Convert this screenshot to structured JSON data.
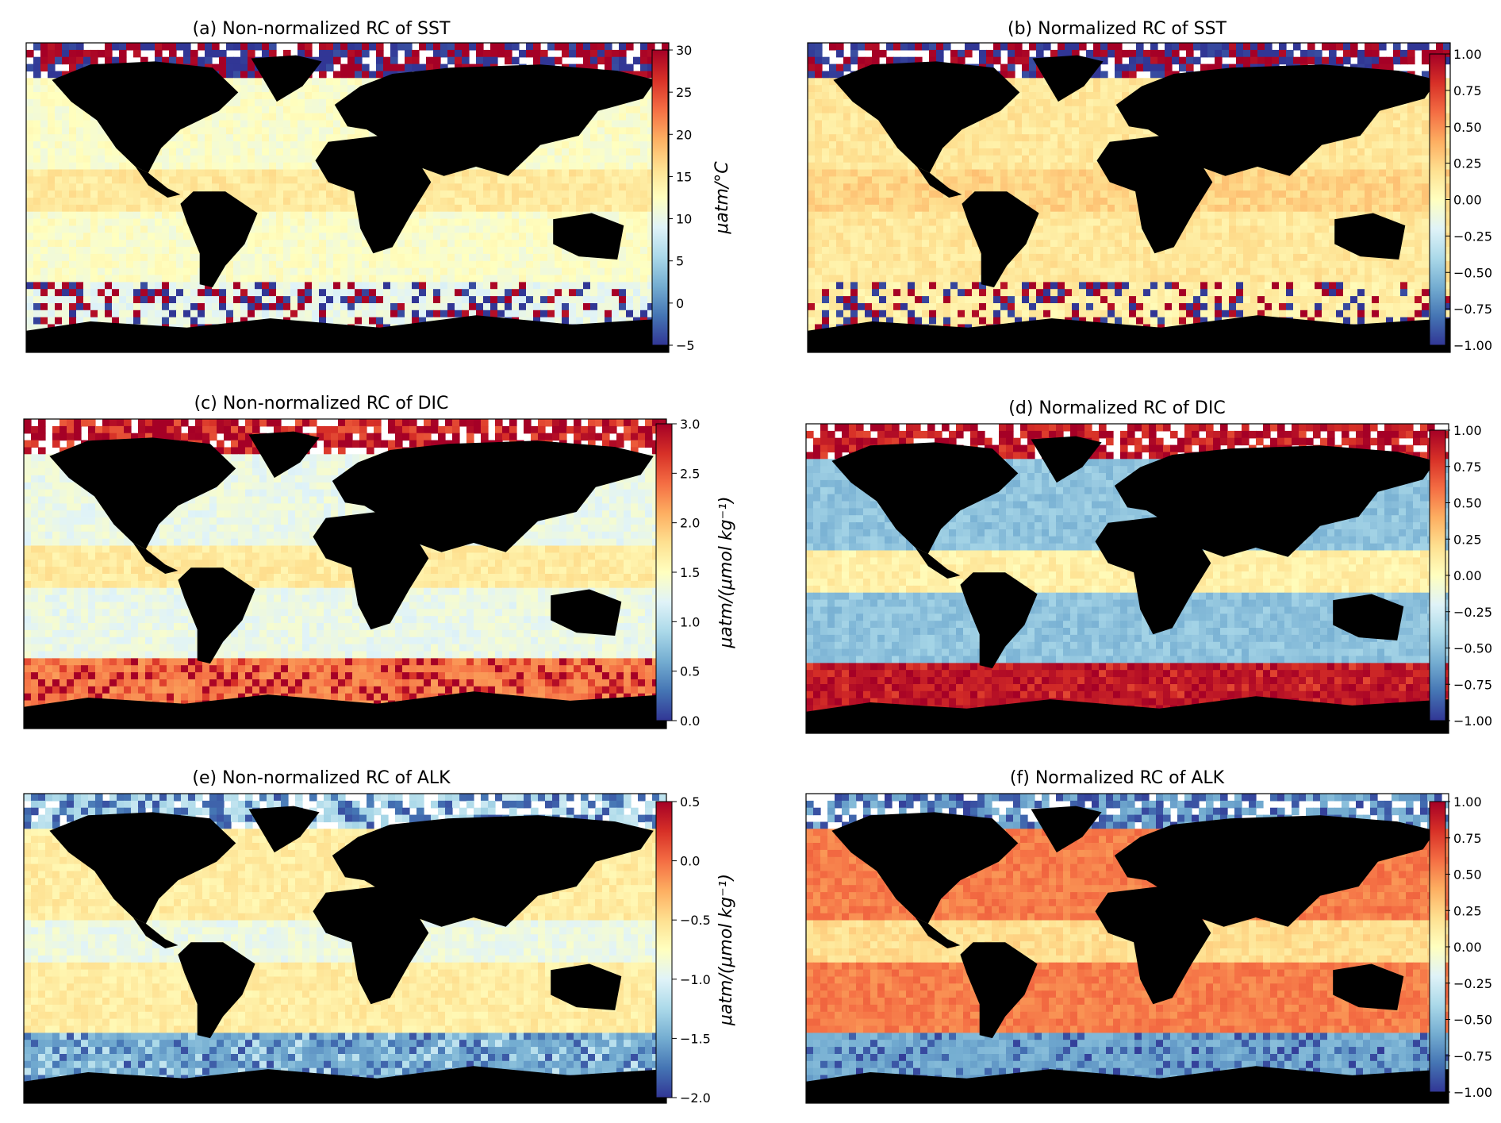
{
  "figure": {
    "colormap": [
      "#313695",
      "#4575b4",
      "#74add1",
      "#abd9e9",
      "#e0f3f8",
      "#ffffbf",
      "#fee090",
      "#fdae61",
      "#f46d43",
      "#d73027",
      "#a50026"
    ],
    "land_color": "#000000"
  },
  "chart_data": [
    {
      "type": "heatmap",
      "panel": "a",
      "title": "(a) Non-normalized RC of SST",
      "colorbar_label": "μatm/°C",
      "ticks": [
        "30",
        "25",
        "20",
        "15",
        "10",
        "5",
        "0",
        "−5"
      ],
      "range": [
        -5,
        30
      ],
      "typical_ocean_value": 12,
      "tropical_band_value": 15,
      "southern_ocean_value": 10,
      "polar_fringe_values": [
        -5,
        30
      ]
    },
    {
      "type": "heatmap",
      "panel": "b",
      "title": "(b) Normalized RC of SST",
      "colorbar_label": "",
      "ticks": [
        "1.00",
        "0.75",
        "0.50",
        "0.25",
        "0.00",
        "−0.25",
        "−0.50",
        "−0.75",
        "−1.00"
      ],
      "range": [
        -1,
        1
      ],
      "typical_ocean_value": 0.15,
      "tropical_band_value": 0.25,
      "southern_ocean_value": 0.1,
      "polar_fringe_values": [
        -1,
        1
      ]
    },
    {
      "type": "heatmap",
      "panel": "c",
      "title": "(c) Non-normalized RC of DIC",
      "colorbar_label": "μatm/(μmol kg⁻¹)",
      "ticks": [
        "3.0",
        "2.5",
        "2.0",
        "1.5",
        "1.0",
        "0.5",
        "0.0"
      ],
      "range": [
        0,
        3
      ],
      "typical_ocean_value": 1.3,
      "tropical_band_value": 1.7,
      "southern_ocean_value": 2.3,
      "polar_fringe_values": [
        2.6,
        3.0
      ]
    },
    {
      "type": "heatmap",
      "panel": "d",
      "title": "(d) Normalized RC of DIC",
      "colorbar_label": "",
      "ticks": [
        "1.00",
        "0.75",
        "0.50",
        "0.25",
        "0.00",
        "−0.25",
        "−0.50",
        "−0.75",
        "−1.00"
      ],
      "range": [
        -1,
        1
      ],
      "typical_ocean_value": -0.5,
      "tropical_band_value": 0.1,
      "southern_ocean_value": 0.9,
      "polar_fringe_values": [
        0.8,
        1.0
      ]
    },
    {
      "type": "heatmap",
      "panel": "e",
      "title": "(e) Non-normalized RC of ALK",
      "colorbar_label": "μatm/(μmol kg⁻¹)",
      "ticks": [
        "0.5",
        "0.0",
        "−0.5",
        "−1.0",
        "−1.5",
        "−2.0"
      ],
      "range": [
        -2,
        0.5
      ],
      "typical_ocean_value": -0.6,
      "tropical_band_value": -0.9,
      "southern_ocean_value": -1.5,
      "polar_fringe_values": [
        -1.8,
        -1.2
      ]
    },
    {
      "type": "heatmap",
      "panel": "f",
      "title": "(f) Normalized RC of ALK",
      "colorbar_label": "",
      "ticks": [
        "1.00",
        "0.75",
        "0.50",
        "0.25",
        "0.00",
        "−0.25",
        "−0.50",
        "−0.75",
        "−1.00"
      ],
      "range": [
        -1,
        1
      ],
      "typical_ocean_value": 0.55,
      "tropical_band_value": 0.2,
      "southern_ocean_value": -0.6,
      "polar_fringe_values": [
        -0.9,
        -0.6
      ]
    }
  ]
}
